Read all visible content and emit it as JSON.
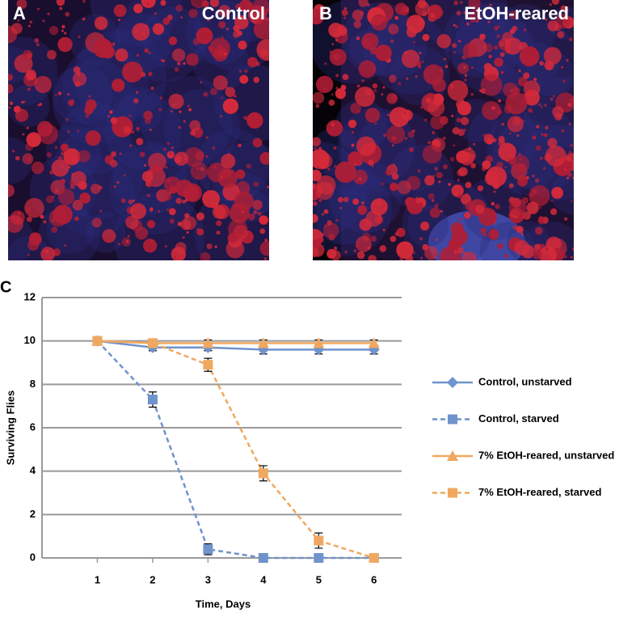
{
  "panels": [
    {
      "letter": "A",
      "title": "Control"
    },
    {
      "letter": "B",
      "title": "EtOH-reared"
    }
  ],
  "chart_data": {
    "type": "line",
    "letter": "C",
    "x_label": "Time, Days",
    "y_label": "Surviving Flies",
    "x": [
      1,
      2,
      3,
      4,
      5,
      6
    ],
    "xlim": [
      0,
      6.5
    ],
    "xticks": [
      1,
      2,
      3,
      4,
      5,
      6
    ],
    "ylim": [
      0,
      12
    ],
    "yticks": [
      0,
      2,
      4,
      6,
      8,
      10,
      12
    ],
    "grid": true,
    "legend": "right",
    "series": [
      {
        "name": "Control, unstarved",
        "color": "#6f93cc",
        "marker": "diamond",
        "linestyle": "solid",
        "values": [
          10,
          9.7,
          9.7,
          9.6,
          9.6,
          9.6
        ],
        "errors": [
          0.05,
          0.15,
          0.15,
          0.2,
          0.2,
          0.2
        ]
      },
      {
        "name": "Control, starved",
        "color": "#6f93cc",
        "marker": "square",
        "linestyle": "dashed",
        "values": [
          10,
          7.3,
          0.4,
          0,
          0,
          0
        ],
        "errors": [
          0.05,
          0.35,
          0.25,
          0,
          0,
          0
        ]
      },
      {
        "name": "7% EtOH-reared, unstarved",
        "color": "#f0a860",
        "marker": "triangle",
        "linestyle": "solid",
        "values": [
          10,
          9.9,
          9.9,
          9.9,
          9.9,
          9.9
        ],
        "errors": [
          0.05,
          0.1,
          0.15,
          0.15,
          0.15,
          0.15
        ]
      },
      {
        "name": "7% EtOH-reared, starved",
        "color": "#f0a860",
        "marker": "square",
        "linestyle": "dashed",
        "values": [
          10,
          9.9,
          8.9,
          3.9,
          0.8,
          0
        ],
        "errors": [
          0.05,
          0.1,
          0.3,
          0.35,
          0.35,
          0
        ]
      }
    ]
  }
}
